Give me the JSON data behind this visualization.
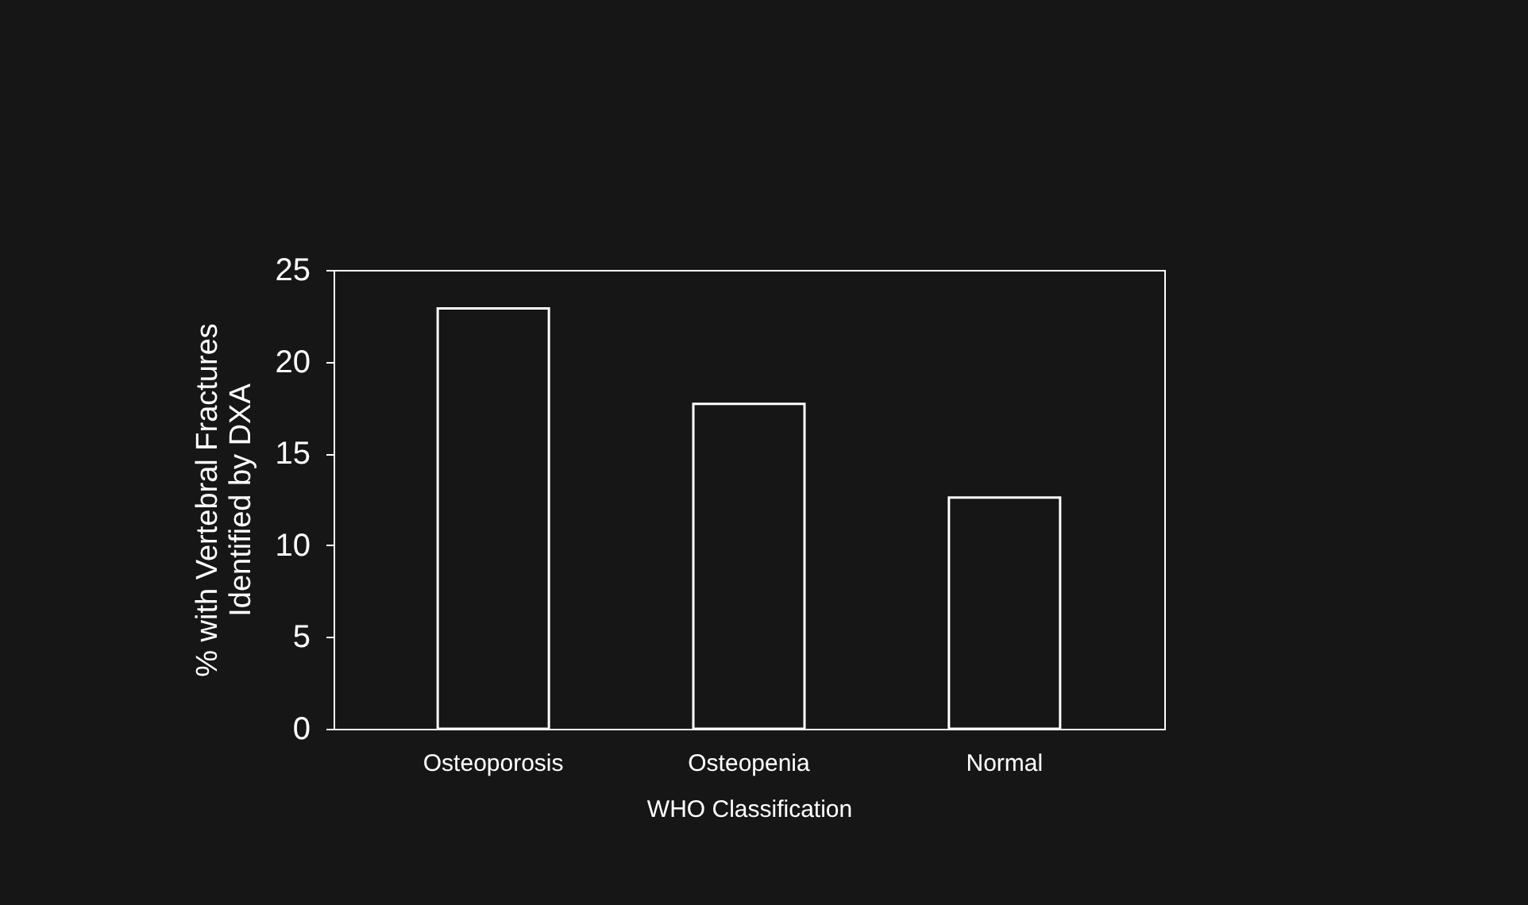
{
  "chart_data": {
    "type": "bar",
    "xlabel": "WHO Classification",
    "ylabel": "% with Vertebral Fractures\nIdentified by DXA",
    "categories": [
      "Osteoporosis",
      "Osteopenia",
      "Normal"
    ],
    "values": [
      22.9,
      17.7,
      12.6
    ],
    "color": "#161616",
    "ylim": [
      0,
      25
    ],
    "yticks": [
      0,
      5,
      10,
      15,
      20,
      25
    ],
    "grid": false
  }
}
